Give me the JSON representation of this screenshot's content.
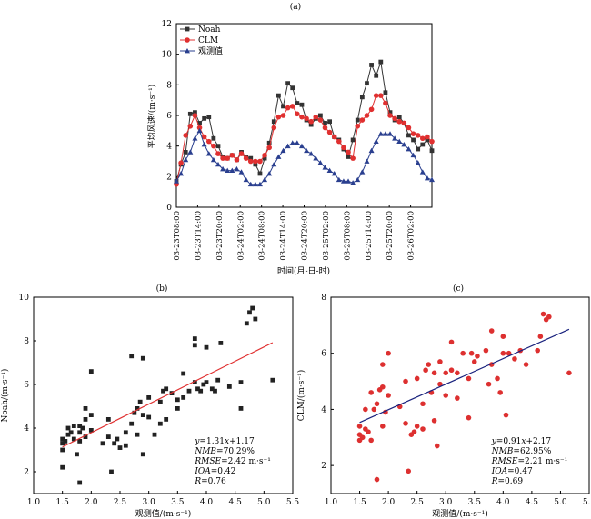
{
  "chart_data": [
    {
      "type": "line",
      "panel_label": "(a)",
      "xlabel": "时间(月-日-时)",
      "ylabel": "平均风速/(m·s⁻¹)",
      "ylim": [
        0,
        12
      ],
      "yticks": [
        "0",
        "2",
        "4",
        "6",
        "8",
        "10",
        "12"
      ],
      "xticks": [
        "03-23T08:00",
        "03-23T14:00",
        "03-23T20:00",
        "03-24T02:00",
        "03-24T08:00",
        "03-24T14:00",
        "03-24T20:00",
        "03-25T02:00",
        "03-25T08:00",
        "03-25T14:00",
        "03-25T20:00",
        "03-26T02:00"
      ],
      "legend_position": "top-left",
      "series": [
        {
          "name": "Noah",
          "color": "#333333",
          "marker": "square",
          "values": [
            1.7,
            2.8,
            3.6,
            6.1,
            6.2,
            5.5,
            5.8,
            5.9,
            4.5,
            4.0,
            3.3,
            3.2,
            3.4,
            3.1,
            3.6,
            3.3,
            3.2,
            2.8,
            2.2,
            3.2,
            4.2,
            5.6,
            7.3,
            6.6,
            8.1,
            7.8,
            6.8,
            6.7,
            5.7,
            5.4,
            5.8,
            6.0,
            5.5,
            5.6,
            4.6,
            4.4,
            3.8,
            3.3,
            4.4,
            5.7,
            7.2,
            8.1,
            9.3,
            8.6,
            9.5,
            7.5,
            6.2,
            5.7,
            5.9,
            5.5,
            4.7,
            4.4,
            3.8,
            4.1,
            4.4,
            3.7
          ]
        },
        {
          "name": "CLM",
          "color": "#e03030",
          "marker": "circle",
          "values": [
            1.5,
            2.9,
            4.7,
            5.3,
            6.0,
            5.2,
            4.6,
            4.3,
            4.0,
            3.5,
            3.2,
            3.2,
            3.4,
            3.1,
            3.5,
            3.2,
            3.0,
            3.0,
            3.0,
            3.4,
            3.9,
            5.2,
            5.9,
            6.0,
            6.5,
            6.6,
            6.1,
            5.9,
            5.8,
            5.6,
            5.9,
            5.7,
            5.2,
            4.9,
            4.6,
            4.3,
            3.9,
            3.6,
            3.2,
            5.3,
            5.7,
            6.0,
            6.4,
            7.3,
            7.3,
            6.8,
            6.0,
            5.8,
            5.6,
            5.5,
            5.2,
            4.8,
            4.7,
            4.5,
            4.6,
            4.3
          ]
        },
        {
          "name": "观测值",
          "color": "#2a3f8f",
          "marker": "triangle",
          "values": [
            1.7,
            2.2,
            3.1,
            3.6,
            4.5,
            5.0,
            4.1,
            3.5,
            3.1,
            2.8,
            2.5,
            2.4,
            2.4,
            2.5,
            2.3,
            1.8,
            1.5,
            1.5,
            1.5,
            1.8,
            2.2,
            2.8,
            3.3,
            3.7,
            4.0,
            4.2,
            4.2,
            4.0,
            3.7,
            3.5,
            3.2,
            2.9,
            2.6,
            2.4,
            2.2,
            1.8,
            1.7,
            1.7,
            1.6,
            1.8,
            2.3,
            3.0,
            3.7,
            4.3,
            4.8,
            4.8,
            4.8,
            4.5,
            4.3,
            4.1,
            3.8,
            3.4,
            2.9,
            2.3,
            1.9,
            1.8
          ]
        }
      ]
    },
    {
      "type": "scatter",
      "panel_label": "(b)",
      "xlabel": "观测值/(m·s⁻¹)",
      "ylabel": "Noah/(m·s⁻¹)",
      "xlim": [
        1.0,
        5.5
      ],
      "ylim": [
        1.0,
        10.0
      ],
      "xticks": [
        "1.0",
        "1.5",
        "2.0",
        "2.5",
        "3.0",
        "3.5",
        "4.0",
        "4.5",
        "5.0",
        "5.5"
      ],
      "yticks": [
        "2",
        "4",
        "6",
        "8",
        "10"
      ],
      "marker_color": "#222222",
      "line_color": "#e03030",
      "fit": {
        "slope": 1.31,
        "intercept": 1.17,
        "x_range": [
          1.5,
          5.15
        ]
      },
      "stats": [
        [
          "y",
          "=1.31",
          "x",
          "+1.17"
        ],
        [
          "NMB",
          "=70.29%"
        ],
        [
          "RMSE",
          "=2.42 m·s⁻¹"
        ],
        [
          "IOA",
          "=0.42"
        ],
        [
          "R",
          "=0.76"
        ]
      ],
      "points": [
        [
          1.5,
          2.2
        ],
        [
          1.5,
          3.0
        ],
        [
          1.5,
          3.3
        ],
        [
          1.5,
          3.5
        ],
        [
          1.55,
          3.4
        ],
        [
          1.6,
          3.7
        ],
        [
          1.6,
          4.0
        ],
        [
          1.65,
          3.8
        ],
        [
          1.7,
          3.5
        ],
        [
          1.7,
          4.1
        ],
        [
          1.75,
          2.8
        ],
        [
          1.8,
          1.5
        ],
        [
          1.8,
          3.4
        ],
        [
          1.8,
          3.8
        ],
        [
          1.8,
          4.1
        ],
        [
          1.85,
          4.0
        ],
        [
          1.9,
          3.6
        ],
        [
          1.9,
          4.4
        ],
        [
          1.9,
          4.9
        ],
        [
          2.0,
          3.9
        ],
        [
          2.0,
          4.6
        ],
        [
          2.0,
          6.6
        ],
        [
          2.2,
          3.3
        ],
        [
          2.3,
          3.6
        ],
        [
          2.3,
          4.4
        ],
        [
          2.35,
          2.0
        ],
        [
          2.4,
          3.3
        ],
        [
          2.45,
          3.5
        ],
        [
          2.5,
          3.1
        ],
        [
          2.6,
          3.2
        ],
        [
          2.6,
          3.8
        ],
        [
          2.7,
          7.3
        ],
        [
          2.7,
          4.2
        ],
        [
          2.75,
          4.7
        ],
        [
          2.8,
          3.7
        ],
        [
          2.8,
          4.9
        ],
        [
          2.85,
          5.2
        ],
        [
          2.9,
          2.8
        ],
        [
          2.9,
          7.2
        ],
        [
          2.9,
          4.6
        ],
        [
          3.0,
          5.4
        ],
        [
          3.0,
          4.5
        ],
        [
          3.1,
          3.7
        ],
        [
          3.2,
          5.2
        ],
        [
          3.2,
          4.2
        ],
        [
          3.25,
          5.7
        ],
        [
          3.3,
          5.8
        ],
        [
          3.3,
          4.4
        ],
        [
          3.4,
          5.6
        ],
        [
          3.5,
          4.9
        ],
        [
          3.5,
          5.3
        ],
        [
          3.6,
          6.5
        ],
        [
          3.6,
          5.4
        ],
        [
          3.7,
          5.7
        ],
        [
          3.8,
          7.8
        ],
        [
          3.8,
          8.1
        ],
        [
          3.8,
          6.1
        ],
        [
          3.85,
          5.8
        ],
        [
          3.9,
          5.7
        ],
        [
          3.95,
          6.0
        ],
        [
          4.0,
          6.1
        ],
        [
          4.0,
          7.7
        ],
        [
          4.1,
          5.8
        ],
        [
          4.15,
          5.7
        ],
        [
          4.2,
          6.2
        ],
        [
          4.25,
          7.9
        ],
        [
          4.4,
          5.9
        ],
        [
          4.6,
          6.1
        ],
        [
          4.6,
          4.9
        ],
        [
          4.7,
          8.8
        ],
        [
          4.75,
          9.3
        ],
        [
          4.8,
          9.5
        ],
        [
          4.85,
          9.0
        ],
        [
          5.15,
          6.2
        ]
      ]
    },
    {
      "type": "scatter",
      "panel_label": "(c)",
      "xlabel": "观测值/(m·s⁻¹)",
      "ylabel": "CLM/(m·s⁻¹)",
      "xlim": [
        1.0,
        5.5
      ],
      "ylim": [
        1.0,
        8.0
      ],
      "xticks": [
        "1.0",
        "1.5",
        "2.0",
        "2.5",
        "3.0",
        "3.5",
        "4.0",
        "4.5",
        "5.0",
        "5.5"
      ],
      "yticks": [
        "2",
        "4",
        "6",
        "8"
      ],
      "marker_color": "#dd3030",
      "line_color": "#1a237e",
      "fit": {
        "slope": 0.91,
        "intercept": 2.17,
        "x_range": [
          1.5,
          5.15
        ]
      },
      "stats": [
        [
          "y",
          "=0.91",
          "x",
          "+2.17"
        ],
        [
          "NMB",
          "=62.95%"
        ],
        [
          "RMSE",
          "=2.21 m·s⁻¹"
        ],
        [
          "IOA",
          "=0.47"
        ],
        [
          "R",
          "=0.69"
        ]
      ],
      "points": [
        [
          1.5,
          2.9
        ],
        [
          1.5,
          3.1
        ],
        [
          1.5,
          3.4
        ],
        [
          1.55,
          3.0
        ],
        [
          1.6,
          3.3
        ],
        [
          1.6,
          4.0
        ],
        [
          1.65,
          3.2
        ],
        [
          1.7,
          2.9
        ],
        [
          1.7,
          4.6
        ],
        [
          1.75,
          4.0
        ],
        [
          1.8,
          1.5
        ],
        [
          1.8,
          4.2
        ],
        [
          1.85,
          4.7
        ],
        [
          1.9,
          3.4
        ],
        [
          1.9,
          4.8
        ],
        [
          1.9,
          5.6
        ],
        [
          1.95,
          3.9
        ],
        [
          2.0,
          4.5
        ],
        [
          2.0,
          6.0
        ],
        [
          2.2,
          4.1
        ],
        [
          2.3,
          3.5
        ],
        [
          2.3,
          5.0
        ],
        [
          2.35,
          1.8
        ],
        [
          2.4,
          3.1
        ],
        [
          2.45,
          3.2
        ],
        [
          2.5,
          3.4
        ],
        [
          2.5,
          5.1
        ],
        [
          2.6,
          3.3
        ],
        [
          2.6,
          4.2
        ],
        [
          2.65,
          5.4
        ],
        [
          2.7,
          5.6
        ],
        [
          2.75,
          4.6
        ],
        [
          2.8,
          3.6
        ],
        [
          2.8,
          5.3
        ],
        [
          2.85,
          2.7
        ],
        [
          2.9,
          5.7
        ],
        [
          2.9,
          4.9
        ],
        [
          3.0,
          5.3
        ],
        [
          3.0,
          4.5
        ],
        [
          3.1,
          6.4
        ],
        [
          3.1,
          5.4
        ],
        [
          3.2,
          5.3
        ],
        [
          3.2,
          4.4
        ],
        [
          3.3,
          6.0
        ],
        [
          3.4,
          3.7
        ],
        [
          3.4,
          5.1
        ],
        [
          3.45,
          6.0
        ],
        [
          3.5,
          5.7
        ],
        [
          3.55,
          5.9
        ],
        [
          3.7,
          6.1
        ],
        [
          3.75,
          4.9
        ],
        [
          3.8,
          5.6
        ],
        [
          3.8,
          6.8
        ],
        [
          3.9,
          5.1
        ],
        [
          3.95,
          4.6
        ],
        [
          4.0,
          6.0
        ],
        [
          4.0,
          6.6
        ],
        [
          4.05,
          3.8
        ],
        [
          4.1,
          6.0
        ],
        [
          4.2,
          5.8
        ],
        [
          4.3,
          6.1
        ],
        [
          4.4,
          5.6
        ],
        [
          4.6,
          6.1
        ],
        [
          4.65,
          6.6
        ],
        [
          4.7,
          7.4
        ],
        [
          4.75,
          7.2
        ],
        [
          4.8,
          7.3
        ],
        [
          5.15,
          5.3
        ]
      ]
    }
  ]
}
